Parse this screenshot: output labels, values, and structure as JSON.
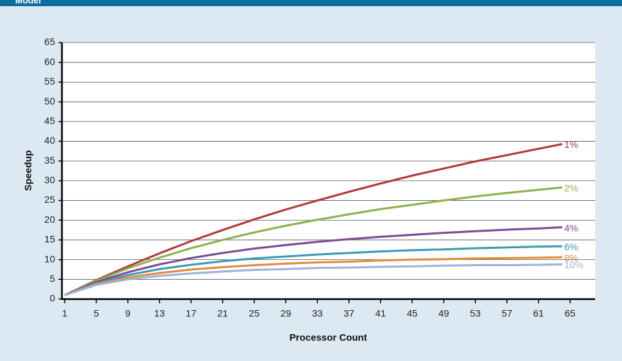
{
  "header": {
    "title": "Model"
  },
  "chart_data": {
    "type": "line",
    "x_label": "Processor Count",
    "y_label": "Speedup",
    "x": [
      1,
      5,
      9,
      13,
      17,
      21,
      25,
      29,
      33,
      37,
      41,
      45,
      49,
      53,
      57,
      61,
      64
    ],
    "series": [
      {
        "name": "1%",
        "color": "#b23b3b",
        "values": [
          1,
          4.8,
          8.3,
          11.6,
          14.7,
          17.5,
          20.2,
          22.7,
          25,
          27.2,
          29.3,
          31.3,
          33.1,
          34.9,
          36.5,
          38.1,
          39.3
        ]
      },
      {
        "name": "2%",
        "color": "#8db24c",
        "values": [
          1,
          4.6,
          7.8,
          10.5,
          12.9,
          15,
          16.9,
          18.6,
          20.1,
          21.5,
          22.8,
          23.9,
          25,
          26,
          26.9,
          27.7,
          28.3
        ]
      },
      {
        "name": "4%",
        "color": "#7a4b9b",
        "values": [
          1,
          4.3,
          6.8,
          8.8,
          10.4,
          11.7,
          12.8,
          13.7,
          14.5,
          15.2,
          15.8,
          16.3,
          16.8,
          17.2,
          17.6,
          17.9,
          18.2
        ]
      },
      {
        "name": "6%",
        "color": "#3b9bb6",
        "values": [
          1,
          4,
          6.1,
          7.6,
          8.7,
          9.6,
          10.3,
          10.8,
          11.3,
          11.7,
          12.1,
          12.4,
          12.6,
          12.9,
          13.1,
          13.3,
          13.4
        ]
      },
      {
        "name": "8%",
        "color": "#e38b3b",
        "values": [
          1,
          3.8,
          5.5,
          6.6,
          7.5,
          8.1,
          8.6,
          9,
          9.3,
          9.5,
          9.8,
          10,
          10.1,
          10.3,
          10.4,
          10.5,
          10.6
        ]
      },
      {
        "name": "10%",
        "color": "#9cb3da",
        "values": [
          1,
          3.6,
          5,
          5.9,
          6.5,
          7,
          7.4,
          7.6,
          7.9,
          8,
          8.2,
          8.3,
          8.5,
          8.6,
          8.6,
          8.7,
          8.8
        ]
      }
    ],
    "xlim": [
      1,
      68
    ],
    "ylim": [
      0,
      65
    ],
    "xticks": [
      1,
      5,
      9,
      13,
      17,
      21,
      25,
      29,
      33,
      37,
      41,
      45,
      49,
      53,
      57,
      61,
      65
    ],
    "yticks": [
      0,
      5,
      10,
      15,
      20,
      25,
      30,
      35,
      40,
      45,
      50,
      55,
      60,
      65
    ],
    "grid": true
  }
}
